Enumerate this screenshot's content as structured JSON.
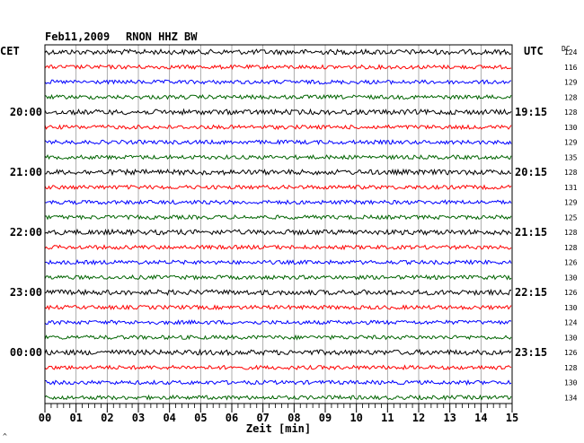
{
  "header": {
    "date": "Feb11,2009",
    "station": "RNON HHZ BW",
    "left_zone": "CET",
    "right_zone": "UTC",
    "dc_label": "DC"
  },
  "chart_data": {
    "type": "line",
    "title": "Feb11,2009   RNON HHZ BW",
    "xlabel": "Zeit [min]",
    "xlim": [
      0,
      15
    ],
    "x_ticks": [
      "00",
      "01",
      "02",
      "03",
      "04",
      "05",
      "06",
      "07",
      "08",
      "09",
      "10",
      "11",
      "12",
      "13",
      "14",
      "15"
    ],
    "trace_count": 24,
    "trace_colors": [
      "#000000",
      "#ff0000",
      "#0000ff",
      "#006400"
    ],
    "cet_hour_labels": [
      {
        "trace": 4,
        "label": "20:00"
      },
      {
        "trace": 8,
        "label": "21:00"
      },
      {
        "trace": 12,
        "label": "22:00"
      },
      {
        "trace": 16,
        "label": "23:00"
      },
      {
        "trace": 20,
        "label": "00:00"
      }
    ],
    "utc_labels": [
      {
        "trace": 4,
        "label": "19:15"
      },
      {
        "trace": 8,
        "label": "20:15"
      },
      {
        "trace": 12,
        "label": "21:15"
      },
      {
        "trace": 16,
        "label": "22:15"
      },
      {
        "trace": 20,
        "label": "23:15"
      }
    ],
    "dc_values": [
      124,
      116,
      129,
      128,
      128,
      130,
      129,
      135,
      128,
      131,
      129,
      125,
      128,
      128,
      126,
      130,
      126,
      130,
      124,
      130,
      126,
      128,
      130,
      134
    ],
    "grid": true
  },
  "footer": {
    "mark": "^"
  }
}
